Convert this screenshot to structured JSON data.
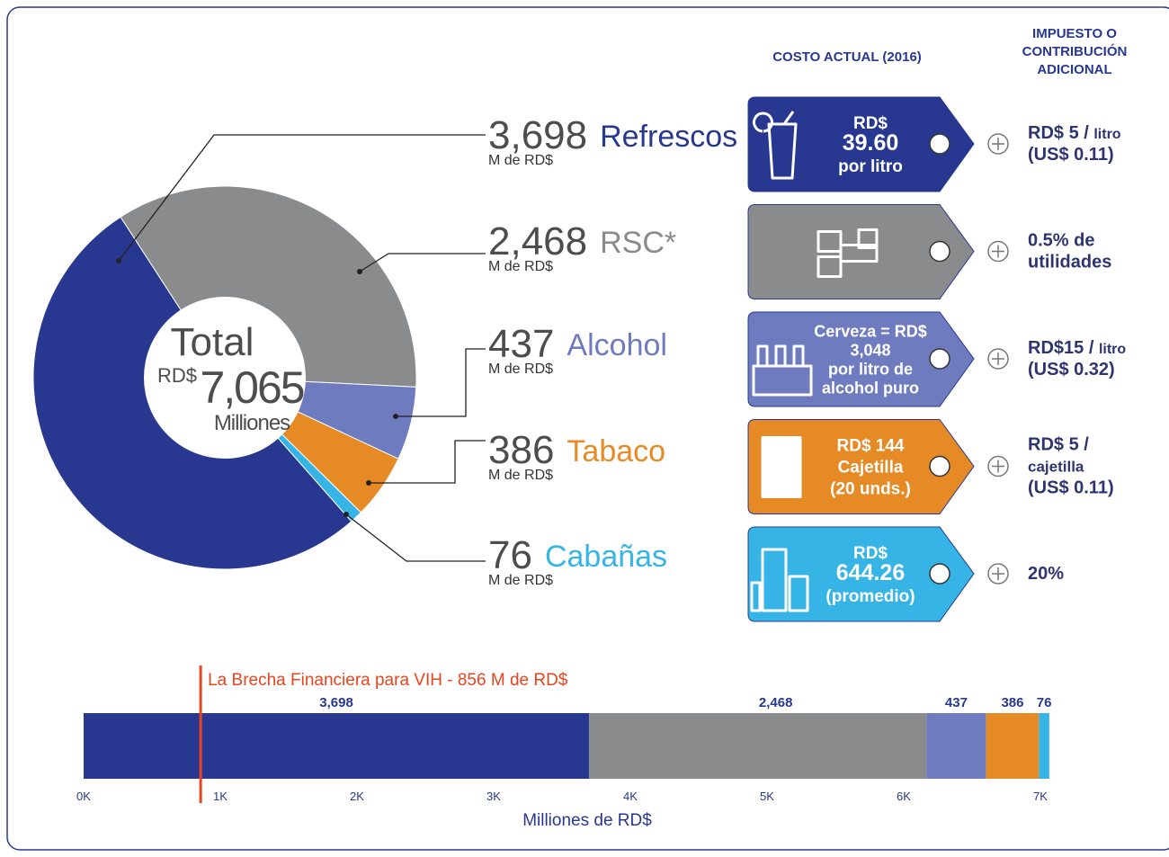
{
  "chart_data": [
    {
      "type": "donut",
      "center": {
        "line1": "Total",
        "currency": "RD$",
        "total": "7,065",
        "line3": "Milliones"
      },
      "categories": [
        "Refrescos",
        "RSC*",
        "Alcohol",
        "Tabaco",
        "Cabañas"
      ],
      "values": [
        3698,
        2468,
        437,
        386,
        76
      ],
      "value_labels": [
        "3,698",
        "2,468",
        "437",
        "386",
        "76"
      ],
      "unit": "M de RD$",
      "colors": [
        "#283891",
        "#8a8b8d",
        "#6e7bbf",
        "#e68a26",
        "#35b4e5"
      ]
    },
    {
      "type": "stacked_bar",
      "orientation": "horizontal",
      "x_label": "Milliones de RD$",
      "xlim": [
        0,
        7200
      ],
      "xticks": [
        {
          "value": 0,
          "label": "0K"
        },
        {
          "value": 1000,
          "label": "1K"
        },
        {
          "value": 2000,
          "label": "2K"
        },
        {
          "value": 3000,
          "label": "3K"
        },
        {
          "value": 4000,
          "label": "4K"
        },
        {
          "value": 5000,
          "label": "5K"
        },
        {
          "value": 6000,
          "label": "6K"
        },
        {
          "value": 7000,
          "label": "7K"
        }
      ],
      "series": [
        {
          "color": "#283891",
          "values": [
            3698
          ],
          "value_labels": [
            "3,698"
          ]
        },
        {
          "color": "#8a8b8d",
          "values": [
            2468
          ],
          "value_labels": [
            "2,468"
          ]
        },
        {
          "color": "#6e7bbf",
          "values": [
            437
          ],
          "value_labels": [
            "437"
          ]
        },
        {
          "color": "#e68a26",
          "values": [
            386
          ],
          "value_labels": [
            "386"
          ]
        },
        {
          "color": "#35b4e5",
          "values": [
            76
          ],
          "value_labels": [
            "76"
          ]
        }
      ],
      "annotation": {
        "text": "La Brecha Financiera para VIH - 856 M de RD$",
        "value": 856,
        "color": "#e8451e"
      }
    }
  ],
  "headers": {
    "cost": "COSTO ACTUAL (2016)",
    "tax": [
      "IMPUESTO O",
      "CONTRIBUCIÓN",
      "ADICIONAL"
    ]
  },
  "items": [
    {
      "tag": [
        "RD$",
        "39.60",
        "por litro"
      ],
      "tax": [
        {
          "text": "RD$ 5 / ",
          "small": "litro"
        },
        {
          "text": "(US$ 0.11)"
        }
      ]
    },
    {
      "tag": [],
      "tax": [
        {
          "text": "0.5% de"
        },
        {
          "text": "utilidades"
        }
      ]
    },
    {
      "tag": [
        "Cerveza = RD$",
        "3,048",
        "por litro de",
        "alcohol puro"
      ],
      "tax": [
        {
          "text": "RD$15 / ",
          "small": "litro"
        },
        {
          "text": "(US$ 0.32)"
        }
      ]
    },
    {
      "tag": [
        "RD$ 144",
        "Cajetilla",
        "(20 unds.)"
      ],
      "tax": [
        {
          "text": "RD$ 5 /"
        },
        {
          "text": "cajetilla"
        },
        {
          "text": "(US$ 0.11)"
        }
      ]
    },
    {
      "tag": [
        "RD$",
        "644.26",
        "(promedio)"
      ],
      "tax": [
        {
          "text": "20%"
        }
      ]
    }
  ]
}
